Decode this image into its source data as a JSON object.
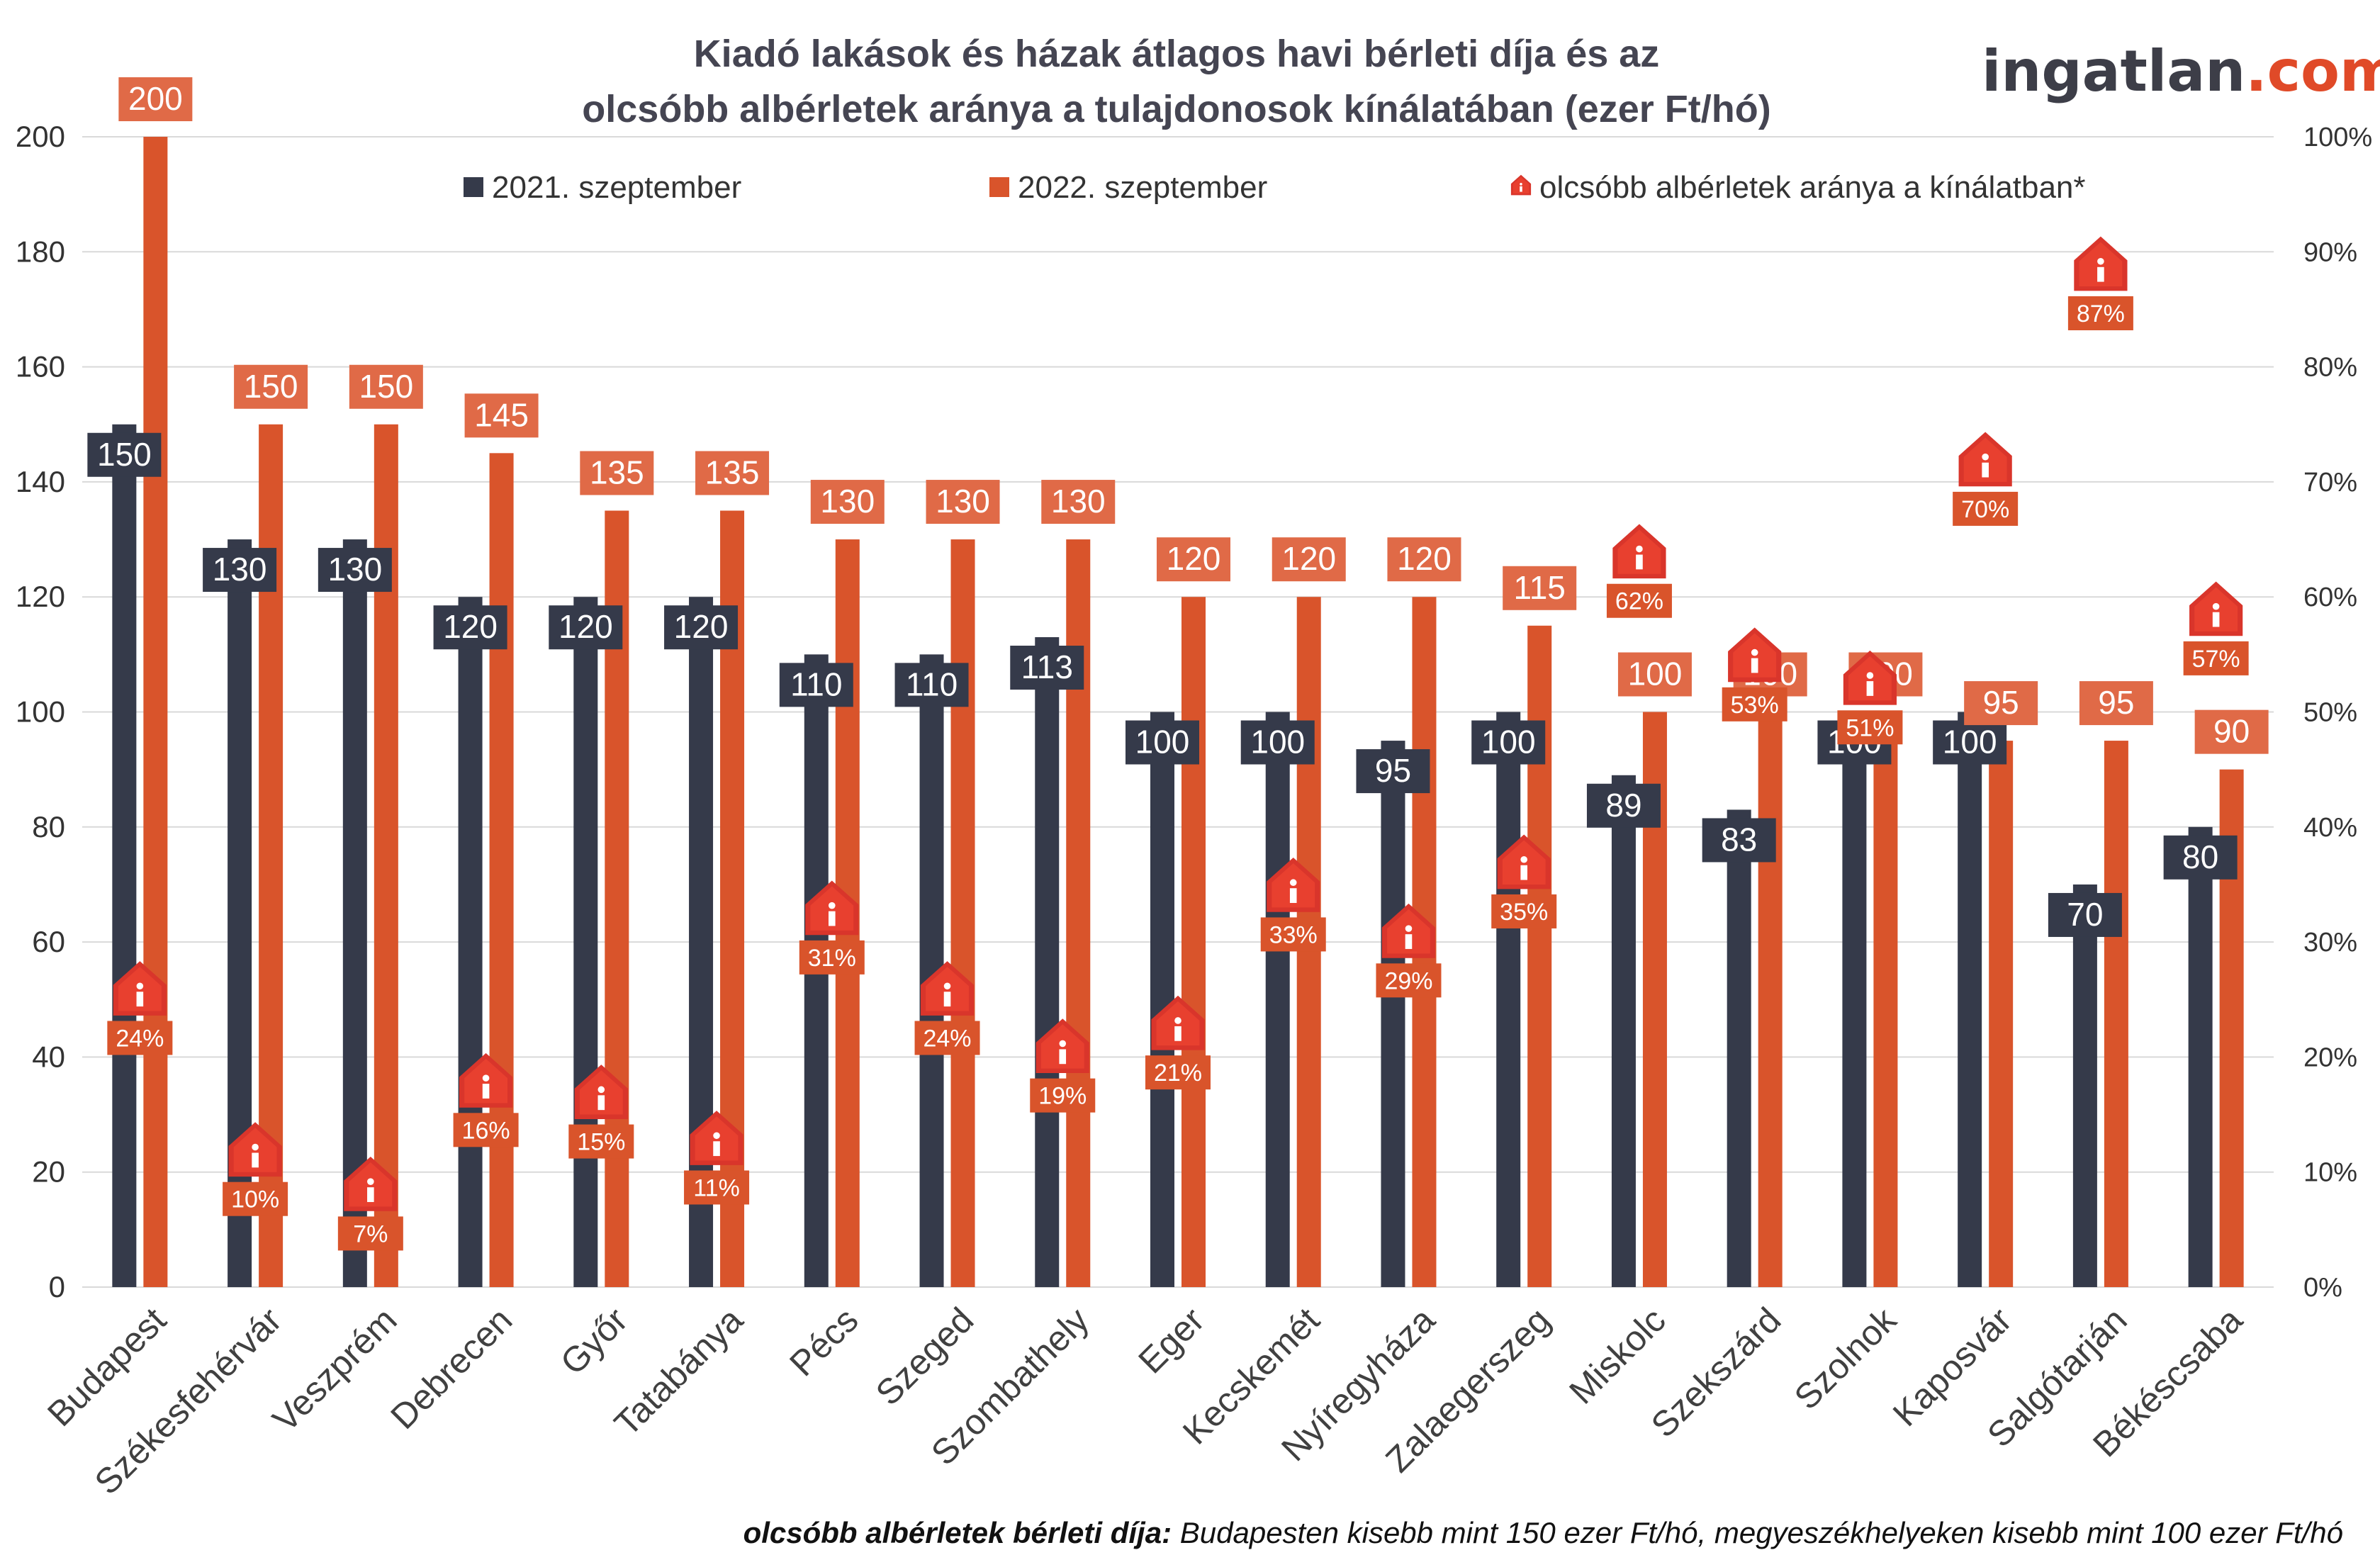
{
  "title_line1": "Kiadó lakások és házak átlagos havi bérleti díja és az",
  "title_line2": "olcsóbb albérletek aránya a tulajdonosok kínálatában (ezer Ft/hó)",
  "logo": {
    "main": "ingatlan",
    "accent": ".com"
  },
  "footnote": {
    "bold": "olcsóbb albérletek bérleti díja:",
    "rest": " Budapesten kisebb mint 150 ezer Ft/hó, megyeszékhelyeken kisebb mint 100 ezer Ft/hó"
  },
  "colors": {
    "series2021": "#353a4a",
    "series2022": "#d9542b",
    "label2022": "#e06a47",
    "marker": "#d9352b",
    "grid": "#d9d9d9"
  },
  "chart_data": {
    "type": "bar",
    "categories": [
      "Budapest",
      "Székesfehérvár",
      "Veszprém",
      "Debrecen",
      "Győr",
      "Tatabánya",
      "Pécs",
      "Szeged",
      "Szombathely",
      "Eger",
      "Kecskemét",
      "Nyíregyháza",
      "Zalaegerszeg",
      "Miskolc",
      "Szekszárd",
      "Szolnok",
      "Kaposvár",
      "Salgótarján",
      "Békéscsaba"
    ],
    "series": [
      {
        "name": "2021. szeptember",
        "values": [
          150,
          130,
          130,
          120,
          120,
          120,
          110,
          110,
          113,
          100,
          100,
          95,
          100,
          89,
          83,
          100,
          100,
          70,
          80
        ],
        "labels": [
          "150",
          "130",
          "130",
          "120",
          "120",
          "120",
          "110",
          "110",
          "113",
          "100",
          "100",
          "95",
          "100",
          "89",
          "83",
          "100",
          "100",
          "70",
          "80"
        ]
      },
      {
        "name": "2022. szeptember",
        "values": [
          200,
          150,
          150,
          145,
          135,
          135,
          130,
          130,
          130,
          120,
          120,
          120,
          115,
          100,
          100,
          100,
          95,
          95,
          90
        ],
        "labels": [
          "200",
          "150",
          "150",
          "145",
          "135",
          "135",
          "130",
          "130",
          "130",
          "120",
          "120",
          "120",
          "115",
          "100",
          "100",
          "100",
          "95",
          "95",
          "90"
        ]
      },
      {
        "name": "olcsóbb albérletek aránya a kínálatban*",
        "axis": "right",
        "values": [
          24,
          10,
          7,
          16,
          15,
          11,
          31,
          24,
          19,
          21,
          33,
          29,
          35,
          62,
          53,
          51,
          70,
          87,
          57
        ],
        "labels": [
          "24%",
          "10%",
          "7%",
          "16%",
          "15%",
          "11%",
          "31%",
          "24%",
          "19%",
          "21%",
          "33%",
          "29%",
          "35%",
          "62%",
          "53%",
          "51%",
          "70%",
          "87%",
          "57%"
        ]
      }
    ],
    "y_left": {
      "min": 0,
      "max": 200,
      "ticks": [
        "0",
        "20",
        "40",
        "60",
        "80",
        "100",
        "120",
        "140",
        "160",
        "180",
        "200"
      ]
    },
    "y_right": {
      "min": 0,
      "max": 100,
      "ticks": [
        "0%",
        "10%",
        "20%",
        "30%",
        "40%",
        "50%",
        "60%",
        "70%",
        "80%",
        "90%",
        "100%"
      ]
    },
    "grid": true,
    "legend_position": "top"
  }
}
